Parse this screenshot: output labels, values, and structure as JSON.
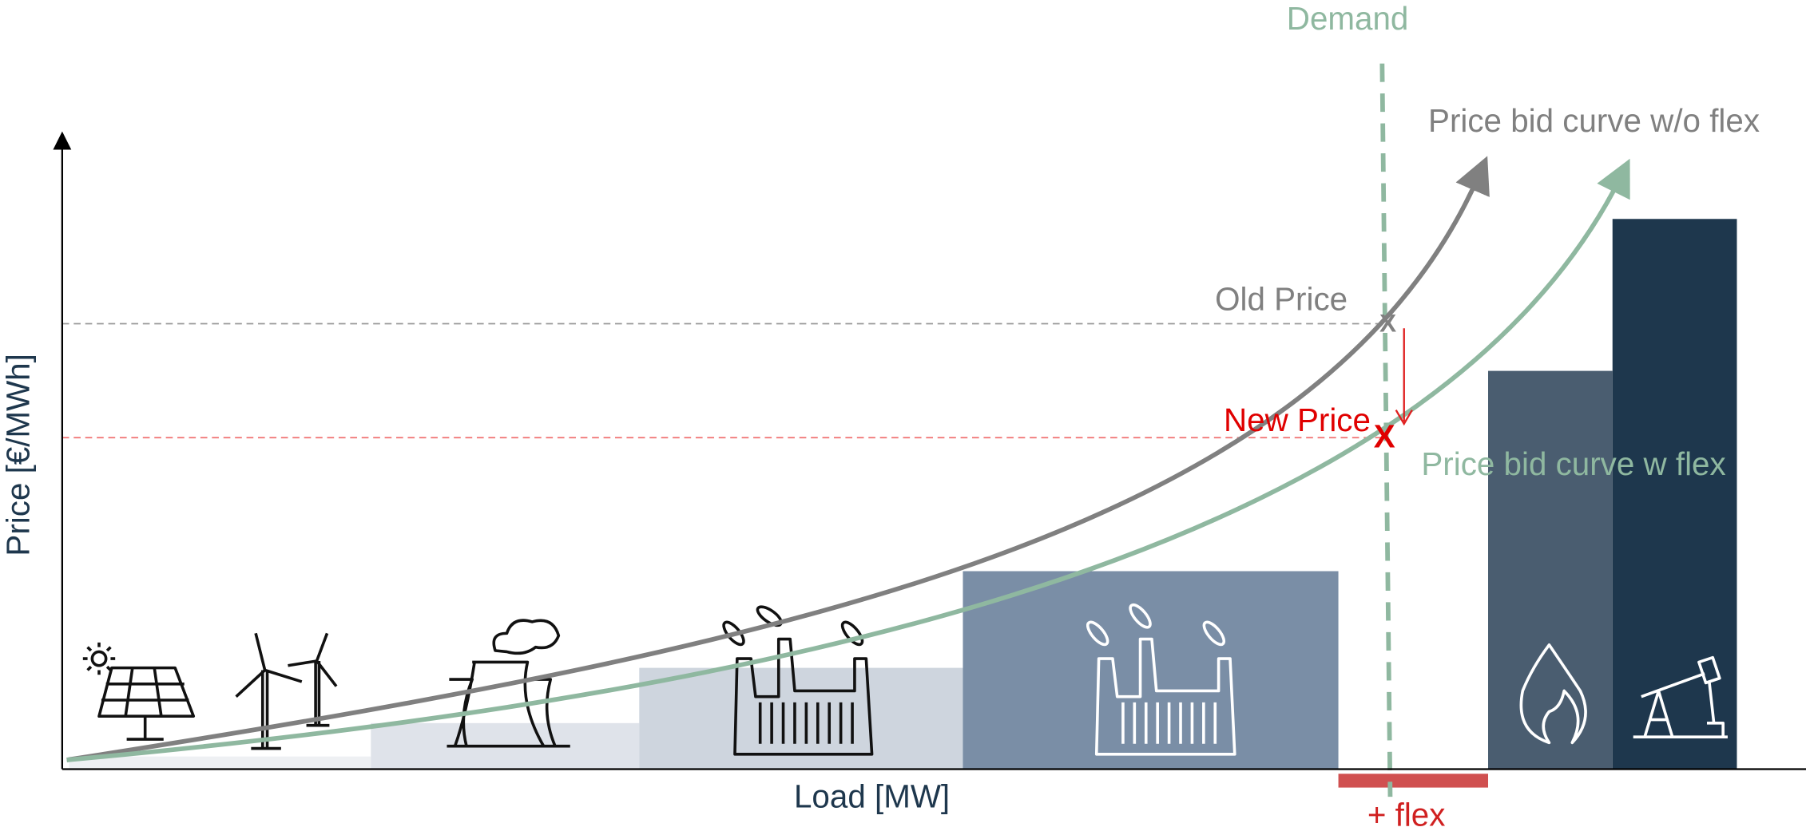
{
  "labels": {
    "demand": "Demand",
    "curve_without_flex": "Price bid curve w/o flex",
    "old_price": "Old Price",
    "old_marker": "X",
    "new_price": "New Price",
    "new_marker": "X",
    "curve_with_flex": "Price bid curve w flex",
    "y_axis": "Price [€/MWh]",
    "x_axis": "Load [MW]",
    "flex": "+ flex"
  }
}
